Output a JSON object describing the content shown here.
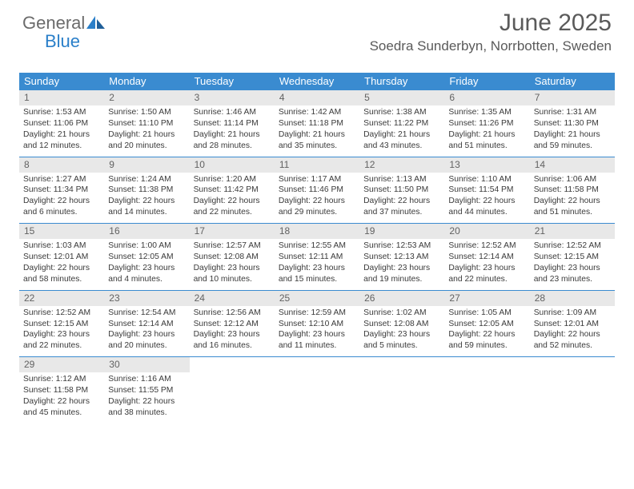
{
  "logo": {
    "text1": "General",
    "text2": "Blue"
  },
  "header": {
    "title": "June 2025",
    "location": "Soedra Sunderbyn, Norrbotten, Sweden"
  },
  "dow": [
    "Sunday",
    "Monday",
    "Tuesday",
    "Wednesday",
    "Thursday",
    "Friday",
    "Saturday"
  ],
  "colors": {
    "header_bg": "#3a8bd0",
    "header_text": "#ffffff",
    "daynum_bg": "#e8e8e8",
    "daynum_text": "#626262",
    "body_text": "#3a3a3a",
    "title_text": "#5a5a5a",
    "logo_gray": "#6b6b6b",
    "logo_blue": "#2a7fc9"
  },
  "weeks": [
    [
      {
        "n": "1",
        "sunrise": "1:53 AM",
        "sunset": "11:06 PM",
        "daylight": "21 hours and 12 minutes."
      },
      {
        "n": "2",
        "sunrise": "1:50 AM",
        "sunset": "11:10 PM",
        "daylight": "21 hours and 20 minutes."
      },
      {
        "n": "3",
        "sunrise": "1:46 AM",
        "sunset": "11:14 PM",
        "daylight": "21 hours and 28 minutes."
      },
      {
        "n": "4",
        "sunrise": "1:42 AM",
        "sunset": "11:18 PM",
        "daylight": "21 hours and 35 minutes."
      },
      {
        "n": "5",
        "sunrise": "1:38 AM",
        "sunset": "11:22 PM",
        "daylight": "21 hours and 43 minutes."
      },
      {
        "n": "6",
        "sunrise": "1:35 AM",
        "sunset": "11:26 PM",
        "daylight": "21 hours and 51 minutes."
      },
      {
        "n": "7",
        "sunrise": "1:31 AM",
        "sunset": "11:30 PM",
        "daylight": "21 hours and 59 minutes."
      }
    ],
    [
      {
        "n": "8",
        "sunrise": "1:27 AM",
        "sunset": "11:34 PM",
        "daylight": "22 hours and 6 minutes."
      },
      {
        "n": "9",
        "sunrise": "1:24 AM",
        "sunset": "11:38 PM",
        "daylight": "22 hours and 14 minutes."
      },
      {
        "n": "10",
        "sunrise": "1:20 AM",
        "sunset": "11:42 PM",
        "daylight": "22 hours and 22 minutes."
      },
      {
        "n": "11",
        "sunrise": "1:17 AM",
        "sunset": "11:46 PM",
        "daylight": "22 hours and 29 minutes."
      },
      {
        "n": "12",
        "sunrise": "1:13 AM",
        "sunset": "11:50 PM",
        "daylight": "22 hours and 37 minutes."
      },
      {
        "n": "13",
        "sunrise": "1:10 AM",
        "sunset": "11:54 PM",
        "daylight": "22 hours and 44 minutes."
      },
      {
        "n": "14",
        "sunrise": "1:06 AM",
        "sunset": "11:58 PM",
        "daylight": "22 hours and 51 minutes."
      }
    ],
    [
      {
        "n": "15",
        "sunrise": "1:03 AM",
        "sunset": "12:01 AM",
        "daylight": "22 hours and 58 minutes."
      },
      {
        "n": "16",
        "sunrise": "1:00 AM",
        "sunset": "12:05 AM",
        "daylight": "23 hours and 4 minutes."
      },
      {
        "n": "17",
        "sunrise": "12:57 AM",
        "sunset": "12:08 AM",
        "daylight": "23 hours and 10 minutes."
      },
      {
        "n": "18",
        "sunrise": "12:55 AM",
        "sunset": "12:11 AM",
        "daylight": "23 hours and 15 minutes."
      },
      {
        "n": "19",
        "sunrise": "12:53 AM",
        "sunset": "12:13 AM",
        "daylight": "23 hours and 19 minutes."
      },
      {
        "n": "20",
        "sunrise": "12:52 AM",
        "sunset": "12:14 AM",
        "daylight": "23 hours and 22 minutes."
      },
      {
        "n": "21",
        "sunrise": "12:52 AM",
        "sunset": "12:15 AM",
        "daylight": "23 hours and 23 minutes."
      }
    ],
    [
      {
        "n": "22",
        "sunrise": "12:52 AM",
        "sunset": "12:15 AM",
        "daylight": "23 hours and 22 minutes."
      },
      {
        "n": "23",
        "sunrise": "12:54 AM",
        "sunset": "12:14 AM",
        "daylight": "23 hours and 20 minutes."
      },
      {
        "n": "24",
        "sunrise": "12:56 AM",
        "sunset": "12:12 AM",
        "daylight": "23 hours and 16 minutes."
      },
      {
        "n": "25",
        "sunrise": "12:59 AM",
        "sunset": "12:10 AM",
        "daylight": "23 hours and 11 minutes."
      },
      {
        "n": "26",
        "sunrise": "1:02 AM",
        "sunset": "12:08 AM",
        "daylight": "23 hours and 5 minutes."
      },
      {
        "n": "27",
        "sunrise": "1:05 AM",
        "sunset": "12:05 AM",
        "daylight": "22 hours and 59 minutes."
      },
      {
        "n": "28",
        "sunrise": "1:09 AM",
        "sunset": "12:01 AM",
        "daylight": "22 hours and 52 minutes."
      }
    ],
    [
      {
        "n": "29",
        "sunrise": "1:12 AM",
        "sunset": "11:58 PM",
        "daylight": "22 hours and 45 minutes."
      },
      {
        "n": "30",
        "sunrise": "1:16 AM",
        "sunset": "11:55 PM",
        "daylight": "22 hours and 38 minutes."
      },
      null,
      null,
      null,
      null,
      null
    ]
  ],
  "labels": {
    "sunrise": "Sunrise: ",
    "sunset": "Sunset: ",
    "daylight": "Daylight: "
  }
}
